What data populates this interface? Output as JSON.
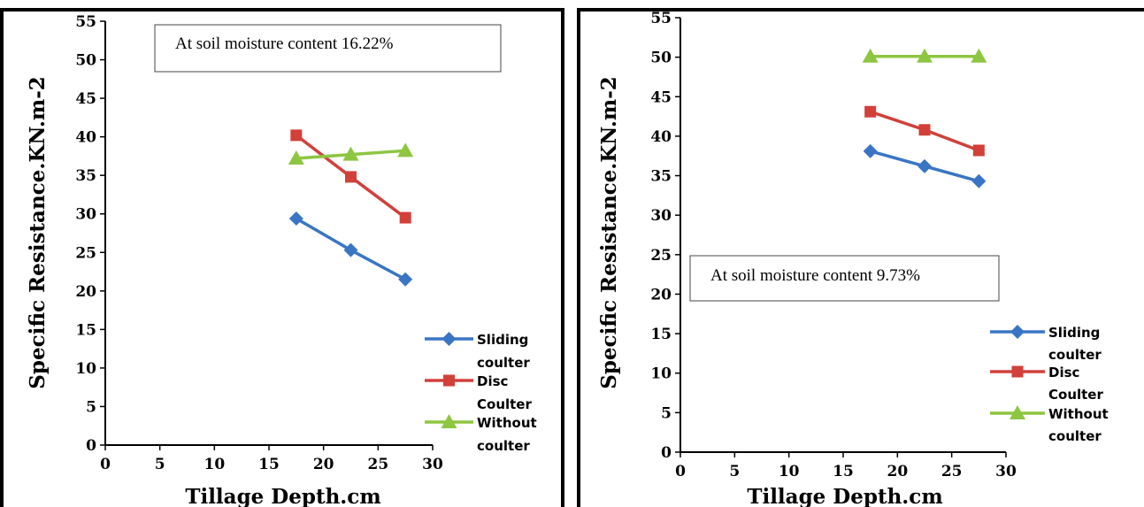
{
  "chart_data": [
    {
      "type": "line",
      "title": "",
      "annotation": "At soil moisture content 16.22%",
      "xlabel": "Tillage Depth.cm",
      "ylabel": "Specific Resistance.KN.m-2",
      "xlim": [
        0,
        30
      ],
      "ylim": [
        0,
        55
      ],
      "x_ticks": [
        "0",
        "5",
        "10",
        "15",
        "20",
        "25",
        "30"
      ],
      "y_ticks": [
        "0",
        "5",
        "10",
        "15",
        "20",
        "25",
        "30",
        "35",
        "40",
        "45",
        "50",
        "55"
      ],
      "grid": false,
      "legend_position": "right",
      "x": [
        17.5,
        22.5,
        27.5
      ],
      "series": [
        {
          "name": "Sliding coulter",
          "legend_lines": [
            "Sliding",
            "coulter"
          ],
          "values": [
            29.4,
            25.3,
            21.5
          ],
          "color": "#3a75c4",
          "marker": "diamond"
        },
        {
          "name": "Disc Coulter",
          "legend_lines": [
            "Disc",
            "Coulter"
          ],
          "values": [
            40.2,
            34.8,
            29.5
          ],
          "color": "#d2403a",
          "marker": "square"
        },
        {
          "name": "Without coulter",
          "legend_lines": [
            "Without",
            "coulter"
          ],
          "values": [
            37.2,
            37.7,
            38.2
          ],
          "color": "#8dc641",
          "marker": "triangle"
        }
      ]
    },
    {
      "type": "line",
      "title": "",
      "annotation": "At soil moisture content 9.73%",
      "xlabel": "Tillage Depth.cm",
      "ylabel": "Specific Resistance.KN.m-2",
      "xlim": [
        0,
        30
      ],
      "ylim": [
        0,
        55
      ],
      "x_ticks": [
        "0",
        "5",
        "10",
        "15",
        "20",
        "25",
        "30"
      ],
      "y_ticks": [
        "0",
        "5",
        "10",
        "15",
        "20",
        "25",
        "30",
        "35",
        "40",
        "45",
        "50",
        "55"
      ],
      "grid": false,
      "legend_position": "right",
      "x": [
        17.5,
        22.5,
        27.5
      ],
      "series": [
        {
          "name": "Sliding coulter",
          "legend_lines": [
            "Sliding",
            "coulter"
          ],
          "values": [
            38.1,
            36.2,
            34.3
          ],
          "color": "#3a75c4",
          "marker": "diamond"
        },
        {
          "name": "Disc Coulter",
          "legend_lines": [
            "Disc",
            "Coulter"
          ],
          "values": [
            43.1,
            40.8,
            38.2
          ],
          "color": "#d2403a",
          "marker": "square"
        },
        {
          "name": "Without coulter",
          "legend_lines": [
            "Without",
            "coulter"
          ],
          "values": [
            50.1,
            50.1,
            50.1
          ],
          "color": "#8dc641",
          "marker": "triangle"
        }
      ]
    }
  ]
}
